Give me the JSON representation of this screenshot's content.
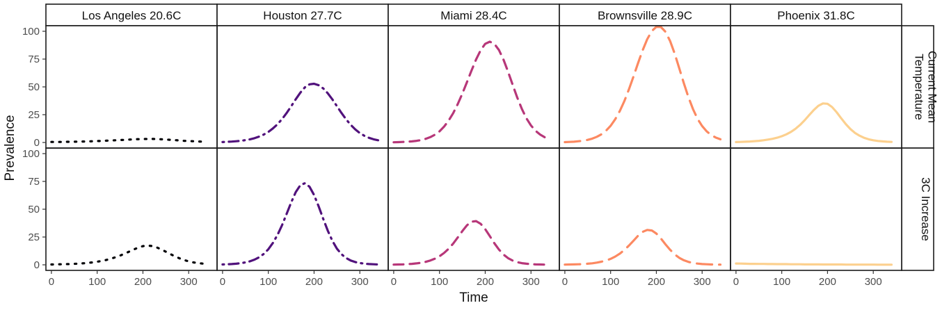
{
  "chart_data": {
    "type": "line",
    "facets": "grid",
    "column_labels": [
      "Los Angeles 20.6C",
      "Houston 27.7C",
      "Miami 28.4C",
      "Brownsville 28.9C",
      "Phoenix 31.8C"
    ],
    "row_labels": [
      [
        "Current Mean",
        "Temperature"
      ],
      [
        "3C Increase"
      ]
    ],
    "xlabel": "Time",
    "ylabel": "Prevalence",
    "xlim": [
      -12,
      362
    ],
    "ylim": [
      -5,
      105
    ],
    "x_ticks": [
      0,
      100,
      200,
      300
    ],
    "y_ticks": [
      0,
      25,
      50,
      75,
      100
    ],
    "x_tick_labels": [
      "0",
      "100",
      "200",
      "300"
    ],
    "y_tick_labels": [
      "0",
      "25",
      "50",
      "75",
      "100"
    ],
    "series_colors": [
      "#000004",
      "#51127c",
      "#b73779",
      "#fc8961",
      "#fcd08e"
    ],
    "x": [
      0,
      10,
      20,
      30,
      40,
      50,
      60,
      70,
      80,
      90,
      100,
      110,
      120,
      130,
      140,
      150,
      160,
      170,
      180,
      190,
      200,
      210,
      220,
      230,
      240,
      250,
      260,
      270,
      280,
      290,
      300,
      310,
      320,
      330,
      340
    ],
    "panels": [
      {
        "row": 0,
        "col": 0,
        "name": "Los Angeles 20.6C / Current Mean Temperature",
        "dash": "dotted",
        "values": [
          0.5,
          0.5,
          0.5,
          0.6,
          0.6,
          0.7,
          0.8,
          0.9,
          1.0,
          1.1,
          1.3,
          1.4,
          1.6,
          1.8,
          2.0,
          2.2,
          2.4,
          2.6,
          2.8,
          3.0,
          3.1,
          3.2,
          3.2,
          3.1,
          2.9,
          2.7,
          2.4,
          2.1,
          1.8,
          1.5,
          1.3,
          1.1,
          0.9,
          0.8,
          0.7
        ]
      },
      {
        "row": 0,
        "col": 1,
        "name": "Houston 27.7C / Current Mean Temperature",
        "dash": "dotdash",
        "values": [
          0.4,
          0.6,
          0.8,
          1.1,
          1.5,
          2.1,
          2.9,
          3.9,
          5.3,
          7.1,
          9.5,
          12.6,
          16.4,
          21.0,
          26.5,
          32.6,
          38.9,
          44.8,
          49.6,
          52.3,
          52.8,
          51.5,
          48.6,
          44.2,
          38.7,
          32.6,
          26.5,
          20.8,
          15.9,
          11.8,
          8.5,
          6.0,
          4.2,
          2.9,
          2.0
        ]
      },
      {
        "row": 0,
        "col": 2,
        "name": "Miami 28.4C / Current Mean Temperature",
        "dash": "dashed",
        "values": [
          0.2,
          0.3,
          0.5,
          0.7,
          1.0,
          1.5,
          2.2,
          3.3,
          4.8,
          7.0,
          10.0,
          14.2,
          19.6,
          26.4,
          34.6,
          44.0,
          54.1,
          64.6,
          74.6,
          83.0,
          88.7,
          90.6,
          88.7,
          83.1,
          74.4,
          63.6,
          51.9,
          40.4,
          30.2,
          21.8,
          15.3,
          10.5,
          7.1,
          4.7,
          3.1
        ]
      },
      {
        "row": 0,
        "col": 3,
        "name": "Brownsville 28.9C / Current Mean Temperature",
        "dash": "longdash",
        "values": [
          0.3,
          0.5,
          0.7,
          1.1,
          1.6,
          2.4,
          3.5,
          5.1,
          7.4,
          10.6,
          15.0,
          20.8,
          28.2,
          37.2,
          47.8,
          59.4,
          71.4,
          82.9,
          92.9,
          100.2,
          104.0,
          103.8,
          99.5,
          91.2,
          79.9,
          66.8,
          53.4,
          40.8,
          30.0,
          21.3,
          14.8,
          10.0,
          6.7,
          4.4,
          2.9
        ]
      },
      {
        "row": 0,
        "col": 4,
        "name": "Phoenix 31.8C / Current Mean Temperature",
        "dash": "solid",
        "values": [
          0.4,
          0.5,
          0.7,
          0.9,
          1.2,
          1.5,
          2.0,
          2.6,
          3.3,
          4.3,
          5.6,
          7.3,
          9.5,
          12.3,
          15.8,
          20.0,
          24.6,
          29.2,
          33.0,
          35.1,
          34.8,
          31.9,
          27.2,
          21.7,
          16.5,
          12.1,
          8.6,
          6.1,
          4.2,
          2.9,
          2.0,
          1.4,
          1.0,
          0.7,
          0.5
        ]
      },
      {
        "row": 1,
        "col": 0,
        "name": "Los Angeles 20.6C / 3C Increase",
        "dash": "dotted",
        "values": [
          0.3,
          0.4,
          0.5,
          0.6,
          0.7,
          0.9,
          1.1,
          1.4,
          1.8,
          2.2,
          2.8,
          3.5,
          4.4,
          5.5,
          6.8,
          8.3,
          10.0,
          11.9,
          13.8,
          15.5,
          16.8,
          17.3,
          16.9,
          15.7,
          13.9,
          11.8,
          9.6,
          7.6,
          5.8,
          4.3,
          3.1,
          2.2,
          1.6,
          1.1,
          0.8
        ]
      },
      {
        "row": 1,
        "col": 1,
        "name": "Houston 27.7C / 3C Increase",
        "dash": "dotdash",
        "values": [
          0.3,
          0.5,
          0.7,
          1.0,
          1.5,
          2.2,
          3.2,
          4.7,
          6.8,
          9.8,
          14.0,
          19.6,
          26.8,
          35.6,
          45.8,
          56.2,
          65.4,
          71.6,
          73.4,
          70.2,
          62.8,
          52.6,
          41.3,
          30.6,
          21.5,
          14.5,
          9.5,
          6.1,
          3.9,
          2.5,
          1.6,
          1.0,
          0.7,
          0.5,
          0.3
        ]
      },
      {
        "row": 1,
        "col": 2,
        "name": "Miami 28.4C / 3C Increase",
        "dash": "dashed",
        "values": [
          0.2,
          0.3,
          0.4,
          0.6,
          0.9,
          1.3,
          1.9,
          2.7,
          3.9,
          5.5,
          7.7,
          10.6,
          14.4,
          19.1,
          24.6,
          30.4,
          35.5,
          38.8,
          39.3,
          36.9,
          32.1,
          25.9,
          19.4,
          13.7,
          9.2,
          6.0,
          3.8,
          2.4,
          1.5,
          1.0,
          0.6,
          0.4,
          0.3,
          0.2,
          0.1
        ]
      },
      {
        "row": 1,
        "col": 3,
        "name": "Brownsville 28.9C / 3C Increase",
        "dash": "longdash",
        "values": [
          0.2,
          0.3,
          0.4,
          0.5,
          0.7,
          1.0,
          1.4,
          2.0,
          2.8,
          3.9,
          5.4,
          7.4,
          10.0,
          13.3,
          17.3,
          21.7,
          26.1,
          29.6,
          31.4,
          30.9,
          28.1,
          23.6,
          18.4,
          13.5,
          9.4,
          6.3,
          4.1,
          2.6,
          1.7,
          1.1,
          0.7,
          0.5,
          0.3,
          0.2,
          0.2
        ]
      },
      {
        "row": 1,
        "col": 4,
        "name": "Phoenix 31.8C / 3C Increase",
        "dash": "solid",
        "values": [
          1.2,
          1.1,
          1.0,
          0.9,
          0.9,
          0.8,
          0.8,
          0.7,
          0.7,
          0.6,
          0.6,
          0.6,
          0.5,
          0.5,
          0.5,
          0.4,
          0.4,
          0.4,
          0.4,
          0.3,
          0.3,
          0.3,
          0.3,
          0.3,
          0.2,
          0.2,
          0.2,
          0.2,
          0.2,
          0.2,
          0.2,
          0.1,
          0.1,
          0.1,
          0.1
        ]
      }
    ]
  }
}
